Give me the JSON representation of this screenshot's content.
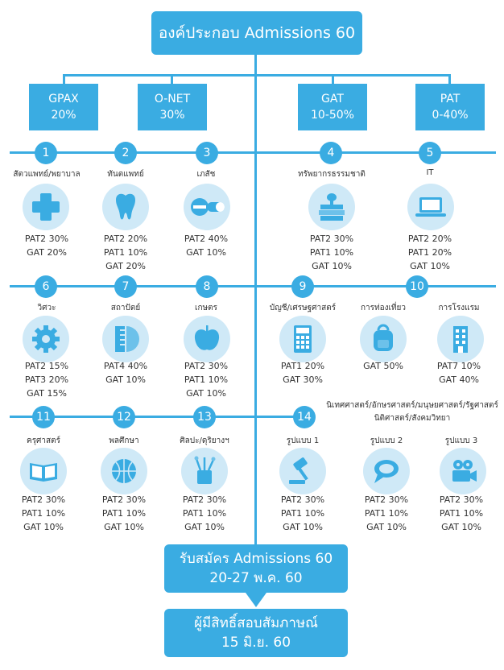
{
  "title": "องค์ประกอบ Admissions 60",
  "components": [
    {
      "name": "GPAX",
      "weight": "20%"
    },
    {
      "name": "O-NET",
      "weight": "30%"
    },
    {
      "name": "GAT",
      "weight": "10-50%"
    },
    {
      "name": "PAT",
      "weight": "0-40%"
    }
  ],
  "groups": [
    {
      "num": "1",
      "label": "สัตวแพทย์/พยาบาล",
      "icon": "medical-cross-icon",
      "reqs": [
        "PAT2 30%",
        "GAT 20%"
      ]
    },
    {
      "num": "2",
      "label": "ทันตแพทย์",
      "icon": "tooth-icon",
      "reqs": [
        "PAT2 20%",
        "PAT1 10%",
        "GAT 20%"
      ]
    },
    {
      "num": "3",
      "label": "เภสัช",
      "icon": "pill-icon",
      "reqs": [
        "PAT2 40%",
        "GAT 10%"
      ]
    },
    {
      "num": "4",
      "label": "ทรัพยากรธรรมชาติ",
      "icon": "books-plant-icon",
      "reqs": [
        "PAT2 30%",
        "PAT1 10%",
        "GAT 10%"
      ]
    },
    {
      "num": "5",
      "label": "IT",
      "icon": "laptop-icon",
      "reqs": [
        "PAT2 20%",
        "PAT1 20%",
        "GAT 10%"
      ]
    },
    {
      "num": "6",
      "label": "วิศวะ",
      "icon": "gear-icon",
      "reqs": [
        "PAT2 15%",
        "PAT3 20%",
        "GAT 15%"
      ]
    },
    {
      "num": "7",
      "label": "สถาปัตย์",
      "icon": "ruler-protractor-icon",
      "reqs": [
        "PAT4 40%",
        "GAT 10%"
      ]
    },
    {
      "num": "8",
      "label": "เกษตร",
      "icon": "apple-icon",
      "reqs": [
        "PAT2 30%",
        "PAT1 10%",
        "GAT 10%"
      ]
    },
    {
      "num": "9",
      "label": "บัญชี/เศรษฐศาสตร์",
      "icon": "calculator-icon",
      "reqs": [
        "PAT1 20%",
        "GAT 30%"
      ]
    },
    {
      "num": "10",
      "label": "การท่องเที่ยว",
      "icon": "backpack-icon",
      "reqs": [
        "GAT 50%"
      ]
    },
    {
      "num": "",
      "label": "การโรงแรม",
      "icon": "hotel-icon",
      "reqs": [
        "PAT7 10%",
        "GAT 40%"
      ]
    },
    {
      "num": "11",
      "label": "ครุศาสตร์",
      "icon": "book-icon",
      "reqs": [
        "PAT2 30%",
        "PAT1 10%",
        "GAT 10%"
      ]
    },
    {
      "num": "12",
      "label": "พลศึกษา",
      "icon": "basketball-icon",
      "reqs": [
        "PAT2 30%",
        "PAT1 10%",
        "GAT 10%"
      ]
    },
    {
      "num": "13",
      "label": "ศิลปะ/ดุริยางฯ",
      "icon": "brushes-icon",
      "reqs": [
        "PAT2 30%",
        "PAT1 10%",
        "GAT 10%"
      ]
    }
  ],
  "group14": {
    "num": "14",
    "note_line1": "นิเทศศาสตร์/อักษรศาสตร์/มนุษยศาสตร์/รัฐศาสตร์",
    "note_line2": "นิติศาสตร์/สังคมวิทยา",
    "formats": [
      {
        "label": "รูปแบบ 1",
        "icon": "gavel-icon",
        "reqs": [
          "PAT2 30%",
          "PAT1 10%",
          "GAT 10%"
        ]
      },
      {
        "label": "รูปแบบ 2",
        "icon": "speech-bubble-icon",
        "reqs": [
          "PAT2 30%",
          "PAT1 10%",
          "GAT 10%"
        ]
      },
      {
        "label": "รูปแบบ 3",
        "icon": "film-camera-icon",
        "reqs": [
          "PAT2 30%",
          "PAT1 10%",
          "GAT 10%"
        ]
      }
    ]
  },
  "application": {
    "line1": "รับสมัคร Admissions 60",
    "line2": "20-27 พ.ค. 60"
  },
  "interview": {
    "line1": "ผู้มีสิทธิ์สอบสัมภาษณ์",
    "line2": "15 มิ.ย. 60"
  },
  "colors": {
    "primary": "#3aace2",
    "icon_bg": "#cfe9f7"
  }
}
